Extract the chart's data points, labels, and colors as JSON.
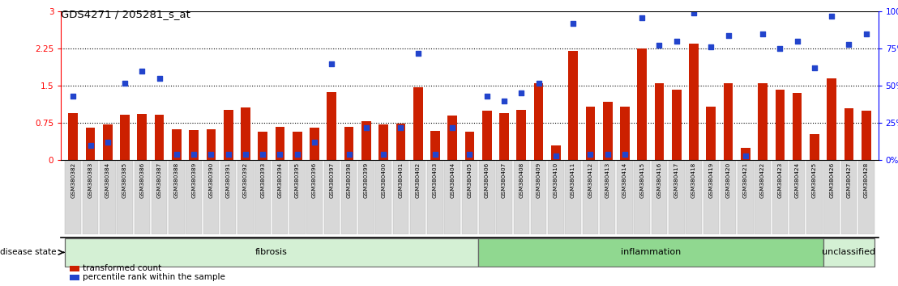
{
  "title": "GDS4271 / 205281_s_at",
  "samples": [
    "GSM380382",
    "GSM380383",
    "GSM380384",
    "GSM380385",
    "GSM380386",
    "GSM380387",
    "GSM380388",
    "GSM380389",
    "GSM380390",
    "GSM380391",
    "GSM380392",
    "GSM380393",
    "GSM380394",
    "GSM380395",
    "GSM380396",
    "GSM380397",
    "GSM380398",
    "GSM380399",
    "GSM380400",
    "GSM380401",
    "GSM380402",
    "GSM380403",
    "GSM380404",
    "GSM380405",
    "GSM380406",
    "GSM380407",
    "GSM380408",
    "GSM380409",
    "GSM380410",
    "GSM380411",
    "GSM380412",
    "GSM380413",
    "GSM380414",
    "GSM380415",
    "GSM380416",
    "GSM380417",
    "GSM380418",
    "GSM380419",
    "GSM380420",
    "GSM380421",
    "GSM380422",
    "GSM380423",
    "GSM380424",
    "GSM380425",
    "GSM380426",
    "GSM380427",
    "GSM380428"
  ],
  "bar_values": [
    0.95,
    0.65,
    0.72,
    0.92,
    0.93,
    0.92,
    0.62,
    0.6,
    0.62,
    1.02,
    1.06,
    0.58,
    0.68,
    0.57,
    0.65,
    1.37,
    0.67,
    0.78,
    0.72,
    0.74,
    1.47,
    0.59,
    0.9,
    0.57,
    1.0,
    0.95,
    1.02,
    1.55,
    0.3,
    2.2,
    1.08,
    1.18,
    1.08,
    2.25,
    1.55,
    1.42,
    2.35,
    1.08,
    1.55,
    0.25,
    1.55,
    1.42,
    1.35,
    0.52,
    1.65,
    1.05,
    1.0
  ],
  "dot_values": [
    43,
    10,
    12,
    52,
    60,
    55,
    4,
    4,
    4,
    4,
    4,
    4,
    4,
    4,
    12,
    65,
    4,
    22,
    4,
    22,
    72,
    4,
    22,
    4,
    43,
    40,
    45,
    52,
    3,
    92,
    4,
    4,
    4,
    96,
    77,
    80,
    99,
    76,
    84,
    3,
    85,
    75,
    80,
    62,
    97,
    78,
    85
  ],
  "group_labels": [
    "fibrosis",
    "inflammation",
    "unclassified"
  ],
  "group_ranges": [
    [
      0,
      23
    ],
    [
      24,
      43
    ],
    [
      44,
      46
    ]
  ],
  "group_colors": [
    "#d4f0d4",
    "#90d890",
    "#d4f0d4"
  ],
  "bar_color": "#cc2000",
  "dot_color": "#2244cc",
  "ylim_left": [
    0,
    3.0
  ],
  "ylim_right": [
    0,
    100
  ],
  "yticks_left": [
    0,
    0.75,
    1.5,
    2.25,
    3.0
  ],
  "ytick_labels_left": [
    "0",
    "0.75",
    "1.5",
    "2.25",
    "3"
  ],
  "yticks_right": [
    0,
    25,
    50,
    75,
    100
  ],
  "ytick_labels_right": [
    "0%",
    "25%",
    "50%",
    "75%",
    "100%"
  ],
  "hlines": [
    0.75,
    1.5,
    2.25
  ],
  "disease_state_label": "disease state",
  "legend_items": [
    {
      "label": "transformed count",
      "color": "#cc2000"
    },
    {
      "label": "percentile rank within the sample",
      "color": "#2244cc"
    }
  ]
}
